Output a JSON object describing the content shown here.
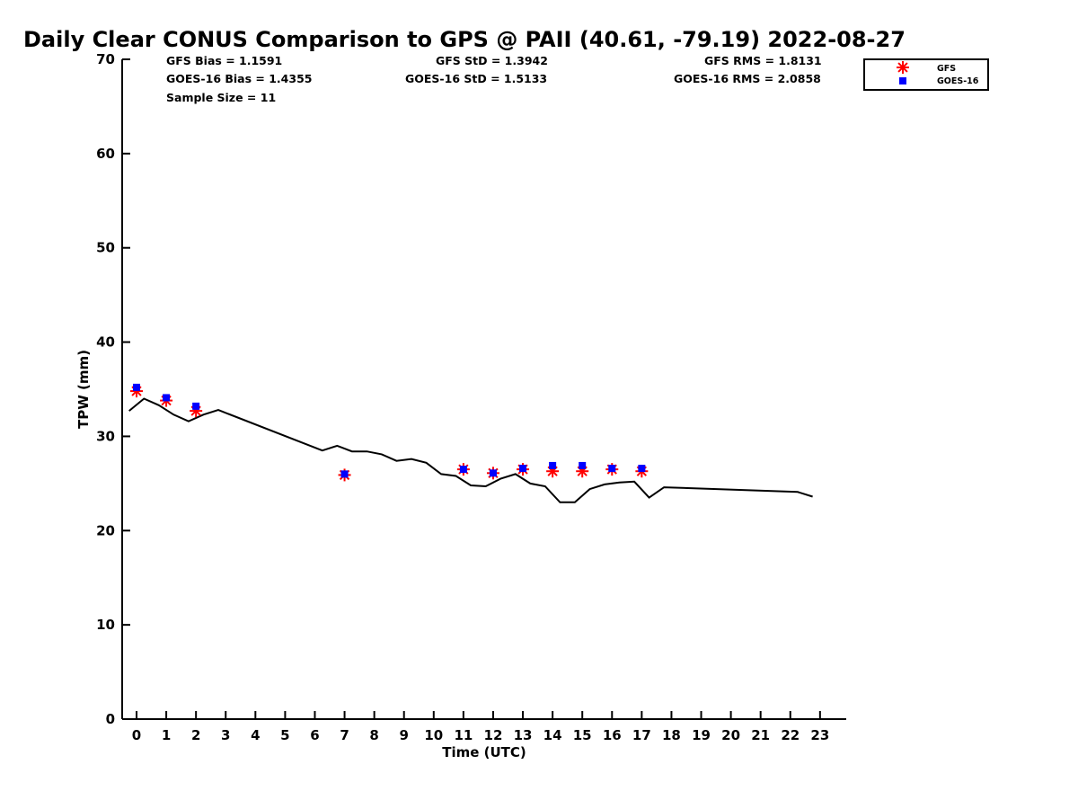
{
  "title": "Daily Clear CONUS Comparison to GPS @ PAII (40.61, -79.19) 2022-08-27",
  "stats": {
    "gfs_bias": "GFS Bias = 1.1591",
    "goes_bias": "GOES-16 Bias = 1.4355",
    "sample_size": "Sample Size = 11",
    "gfs_std": "GFS StD = 1.3942",
    "goes_std": "GOES-16 StD = 1.5133",
    "gfs_rms": "GFS RMS = 1.8131",
    "goes_rms": "GOES-16 RMS = 2.0858"
  },
  "colors": {
    "gfs": "#ff0000",
    "goes": "#0000ff",
    "gps": "#000000"
  },
  "chart_data": {
    "type": "scatter",
    "xlabel": "Time (UTC)",
    "ylabel": "TPW (mm)",
    "xlim": [
      -0.5,
      23.75
    ],
    "ylim": [
      0,
      70
    ],
    "xticks": [
      0,
      1,
      2,
      3,
      4,
      5,
      6,
      7,
      8,
      9,
      10,
      11,
      12,
      13,
      14,
      15,
      16,
      17,
      18,
      19,
      20,
      21,
      22,
      23
    ],
    "yticks": [
      0,
      10,
      20,
      30,
      40,
      50,
      60,
      70
    ],
    "grid": false,
    "legend_position": "top-right",
    "legend": [
      "GFS",
      "GOES-16"
    ],
    "series": [
      {
        "name": "GFS",
        "marker": "asterisk",
        "x": [
          0,
          1,
          2,
          7,
          11,
          12,
          13,
          14,
          15,
          16,
          17
        ],
        "y": [
          34.8,
          33.8,
          32.7,
          25.9,
          26.5,
          26.1,
          26.5,
          26.3,
          26.3,
          26.5,
          26.3
        ]
      },
      {
        "name": "GOES-16",
        "marker": "square",
        "x": [
          0,
          1,
          2,
          7,
          11,
          12,
          13,
          14,
          15,
          16,
          17
        ],
        "y": [
          35.2,
          34.1,
          33.2,
          26.0,
          26.5,
          26.1,
          26.6,
          26.9,
          26.9,
          26.6,
          26.6
        ]
      },
      {
        "marker": "line",
        "x": [
          -0.25,
          0.25,
          0.75,
          1.25,
          1.75,
          2.25,
          2.75,
          6.25,
          6.75,
          7.25,
          7.75,
          8.25,
          8.75,
          9.25,
          9.75,
          10.25,
          10.75,
          11.25,
          11.75,
          12.25,
          12.75,
          13.25,
          13.75,
          14.25,
          14.75,
          15.25,
          15.75,
          16.25,
          16.75,
          17.25,
          17.75,
          22.25,
          22.75
        ],
        "y": [
          32.7,
          34.0,
          33.3,
          32.3,
          31.6,
          32.3,
          32.8,
          28.5,
          29.0,
          28.4,
          28.4,
          28.1,
          27.4,
          27.6,
          27.2,
          26.0,
          25.8,
          24.8,
          24.7,
          25.5,
          26.0,
          25.0,
          24.7,
          23.0,
          23.0,
          24.4,
          24.9,
          25.1,
          25.2,
          23.5,
          24.6,
          24.1,
          23.6
        ]
      }
    ]
  }
}
